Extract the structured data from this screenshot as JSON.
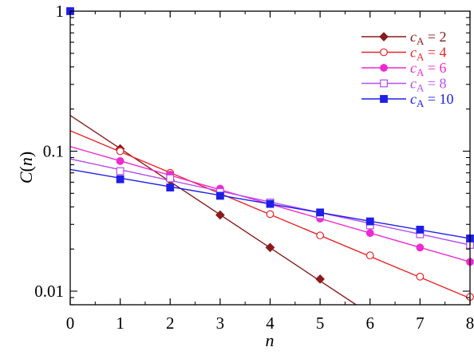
{
  "chart_data": {
    "type": "line",
    "xlabel": "n",
    "ylabel": "C(n)",
    "ylabel_parts": {
      "func": "C",
      "open": "(",
      "var": "n",
      "close": ")"
    },
    "xlim": [
      0,
      8
    ],
    "ylim": [
      0.008,
      1
    ],
    "yscale": "log",
    "grid": false,
    "legend_position": "top-right",
    "x_ticks": [
      0,
      1,
      2,
      3,
      4,
      5,
      6,
      7,
      8
    ],
    "x_tick_labels": [
      "0",
      "1",
      "2",
      "3",
      "4",
      "5",
      "6",
      "7",
      "8"
    ],
    "y_ticks": [
      0.01,
      0.1,
      1
    ],
    "y_tick_labels": [
      "0.01",
      "0.1",
      "1"
    ],
    "series": [
      {
        "name": "c_A = 2",
        "legend_var": "c",
        "legend_sub": "A",
        "legend_rest": " = 2",
        "color": "#8b1a1a",
        "marker": "diamond",
        "filled": true,
        "x": [
          1,
          2,
          3,
          4,
          5,
          6,
          7,
          8
        ],
        "y": [
          0.104,
          0.062,
          0.035,
          0.0205,
          0.0122,
          null,
          null,
          null
        ],
        "fit": [
          [
            0,
            0.18
          ],
          [
            5.72,
            0.008
          ]
        ]
      },
      {
        "name": "c_A = 4",
        "legend_var": "c",
        "legend_sub": "A",
        "legend_rest": " = 4",
        "color": "#e8262a",
        "marker": "circle",
        "filled": false,
        "x": [
          1,
          2,
          3,
          4,
          5,
          6,
          7,
          8
        ],
        "y": [
          0.1,
          0.07,
          0.052,
          0.0355,
          0.025,
          0.018,
          0.0127,
          0.0091
        ],
        "fit": [
          [
            0,
            0.14
          ],
          [
            8,
            0.0089
          ]
        ]
      },
      {
        "name": "c_A = 6",
        "legend_var": "c",
        "legend_sub": "A",
        "legend_rest": " = 6",
        "color": "#ee2ad0",
        "marker": "circle",
        "filled": true,
        "x": [
          1,
          2,
          3,
          4,
          5,
          6,
          7,
          8
        ],
        "y": [
          0.085,
          0.068,
          0.054,
          0.042,
          0.033,
          0.026,
          0.0205,
          0.0162
        ],
        "fit": [
          [
            0,
            0.108
          ],
          [
            8,
            0.0162
          ]
        ]
      },
      {
        "name": "c_A = 8",
        "legend_var": "c",
        "legend_sub": "A",
        "legend_rest": " = 8",
        "color": "#b54cf0",
        "marker": "square",
        "filled": false,
        "x": [
          1,
          2,
          3,
          4,
          5,
          6,
          7,
          8
        ],
        "y": [
          0.072,
          0.064,
          0.051,
          0.043,
          0.035,
          0.0295,
          0.0255,
          0.0214
        ],
        "fit": [
          [
            0,
            0.088
          ],
          [
            8,
            0.0214
          ]
        ]
      },
      {
        "name": "c_A = 10",
        "legend_var": "c",
        "legend_sub": "A",
        "legend_rest": " = 10",
        "color": "#1e1ee8",
        "marker": "square",
        "filled": true,
        "x": [
          0,
          1,
          2,
          3,
          4,
          5,
          6,
          7,
          8
        ],
        "y": [
          1.0,
          0.063,
          0.055,
          0.048,
          0.042,
          0.0365,
          0.0315,
          0.0275,
          0.0238
        ],
        "fit": [
          [
            0,
            0.074
          ],
          [
            8,
            0.0238
          ]
        ]
      }
    ]
  }
}
